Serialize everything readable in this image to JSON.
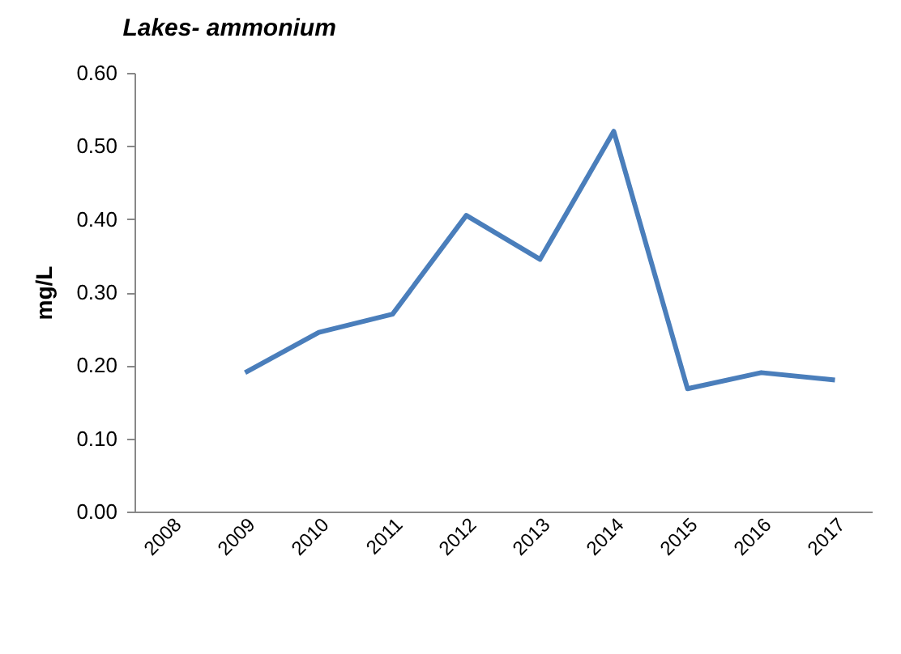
{
  "chart_data": {
    "type": "line",
    "title": "Lakes- ammonium",
    "ylabel": "mg/L",
    "categories": [
      "2008",
      "2009",
      "2010",
      "2011",
      "2012",
      "2013",
      "2014",
      "2015",
      "2016",
      "2017"
    ],
    "series": [
      {
        "color": "#4a7ebb",
        "values": [
          null,
          0.19,
          0.245,
          0.27,
          0.405,
          0.345,
          0.52,
          0.168,
          0.19,
          0.18
        ]
      }
    ],
    "ylim": [
      0,
      0.6
    ],
    "yticks": [
      {
        "value": 0,
        "label": "0.00"
      },
      {
        "value": 0.1,
        "label": "0.10"
      },
      {
        "value": 0.2,
        "label": "0.20"
      },
      {
        "value": 0.3,
        "label": "0.30"
      },
      {
        "value": 0.4,
        "label": "0.40"
      },
      {
        "value": 0.5,
        "label": "0.50"
      },
      {
        "value": 0.6,
        "label": "0.60"
      }
    ],
    "grid": false,
    "legend": false,
    "marker": "none",
    "line_style": "solid"
  }
}
